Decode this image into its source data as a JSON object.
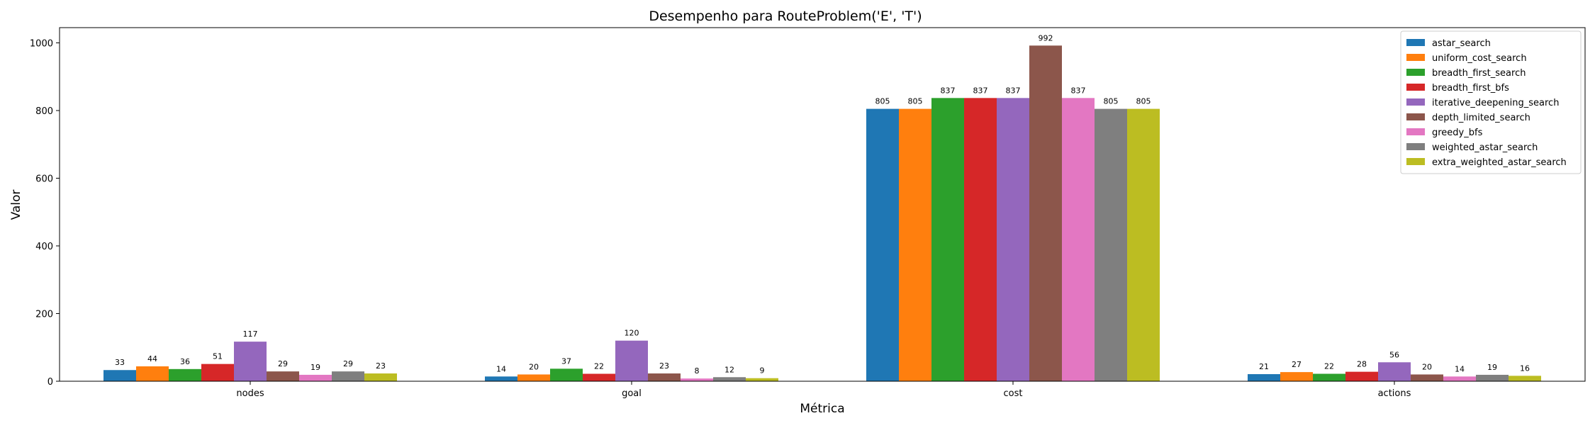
{
  "chart_data": {
    "type": "bar",
    "title": "Desempenho para RouteProblem('E', 'T')",
    "xlabel": "Métrica",
    "ylabel": "Valor",
    "categories": [
      "nodes",
      "goal",
      "cost",
      "actions"
    ],
    "ylim": [
      0,
      1045
    ],
    "yticks": [
      0,
      200,
      400,
      600,
      800,
      1000
    ],
    "grid": false,
    "legend_position": "top-right",
    "series": [
      {
        "name": "astar_search",
        "color": "#1f77b4",
        "values": [
          33,
          14,
          805,
          21
        ]
      },
      {
        "name": "uniform_cost_search",
        "color": "#ff7f0e",
        "values": [
          44,
          20,
          805,
          27
        ]
      },
      {
        "name": "breadth_first_search",
        "color": "#2ca02c",
        "values": [
          36,
          37,
          837,
          22
        ]
      },
      {
        "name": "breadth_first_bfs",
        "color": "#d62728",
        "values": [
          51,
          22,
          837,
          28
        ]
      },
      {
        "name": "iterative_deepening_search",
        "color": "#9467bd",
        "values": [
          117,
          120,
          837,
          56
        ]
      },
      {
        "name": "depth_limited_search",
        "color": "#8c564b",
        "values": [
          29,
          23,
          992,
          20
        ]
      },
      {
        "name": "greedy_bfs",
        "color": "#e377c2",
        "values": [
          19,
          8,
          837,
          14
        ]
      },
      {
        "name": "weighted_astar_search",
        "color": "#7f7f7f",
        "values": [
          29,
          12,
          805,
          19
        ]
      },
      {
        "name": "extra_weighted_astar_search",
        "color": "#bcbd22",
        "values": [
          23,
          9,
          805,
          16
        ]
      }
    ]
  }
}
